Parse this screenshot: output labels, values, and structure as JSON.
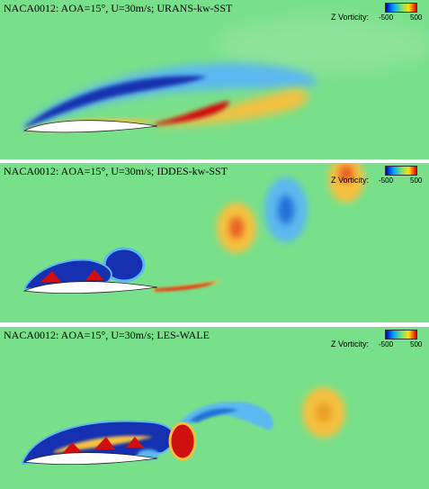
{
  "colors": {
    "background": "#78e08a",
    "positive_high": "#d01010",
    "positive_mid": "#f5c040",
    "negative_high": "#1530b0",
    "negative_mid": "#5cb8f0",
    "airfoil": "#ffffff"
  },
  "colorbar": {
    "label": "Z Vorticity:",
    "min_label": "-500",
    "max_label": "500",
    "gradient": [
      "#0000c8",
      "#00a0ff",
      "#70e080",
      "#ffe000",
      "#e00000"
    ]
  },
  "panels": [
    {
      "id": "urans",
      "title": "NACA0012: AOA=15°, U=30m/s; URANS-kw-SST"
    },
    {
      "id": "iddes",
      "title": "NACA0012: AOA=15°, U=30m/s; IDDES-kw-SST"
    },
    {
      "id": "les",
      "title": "NACA0012: AOA=15°, U=30m/s; LES-WALE"
    }
  ]
}
